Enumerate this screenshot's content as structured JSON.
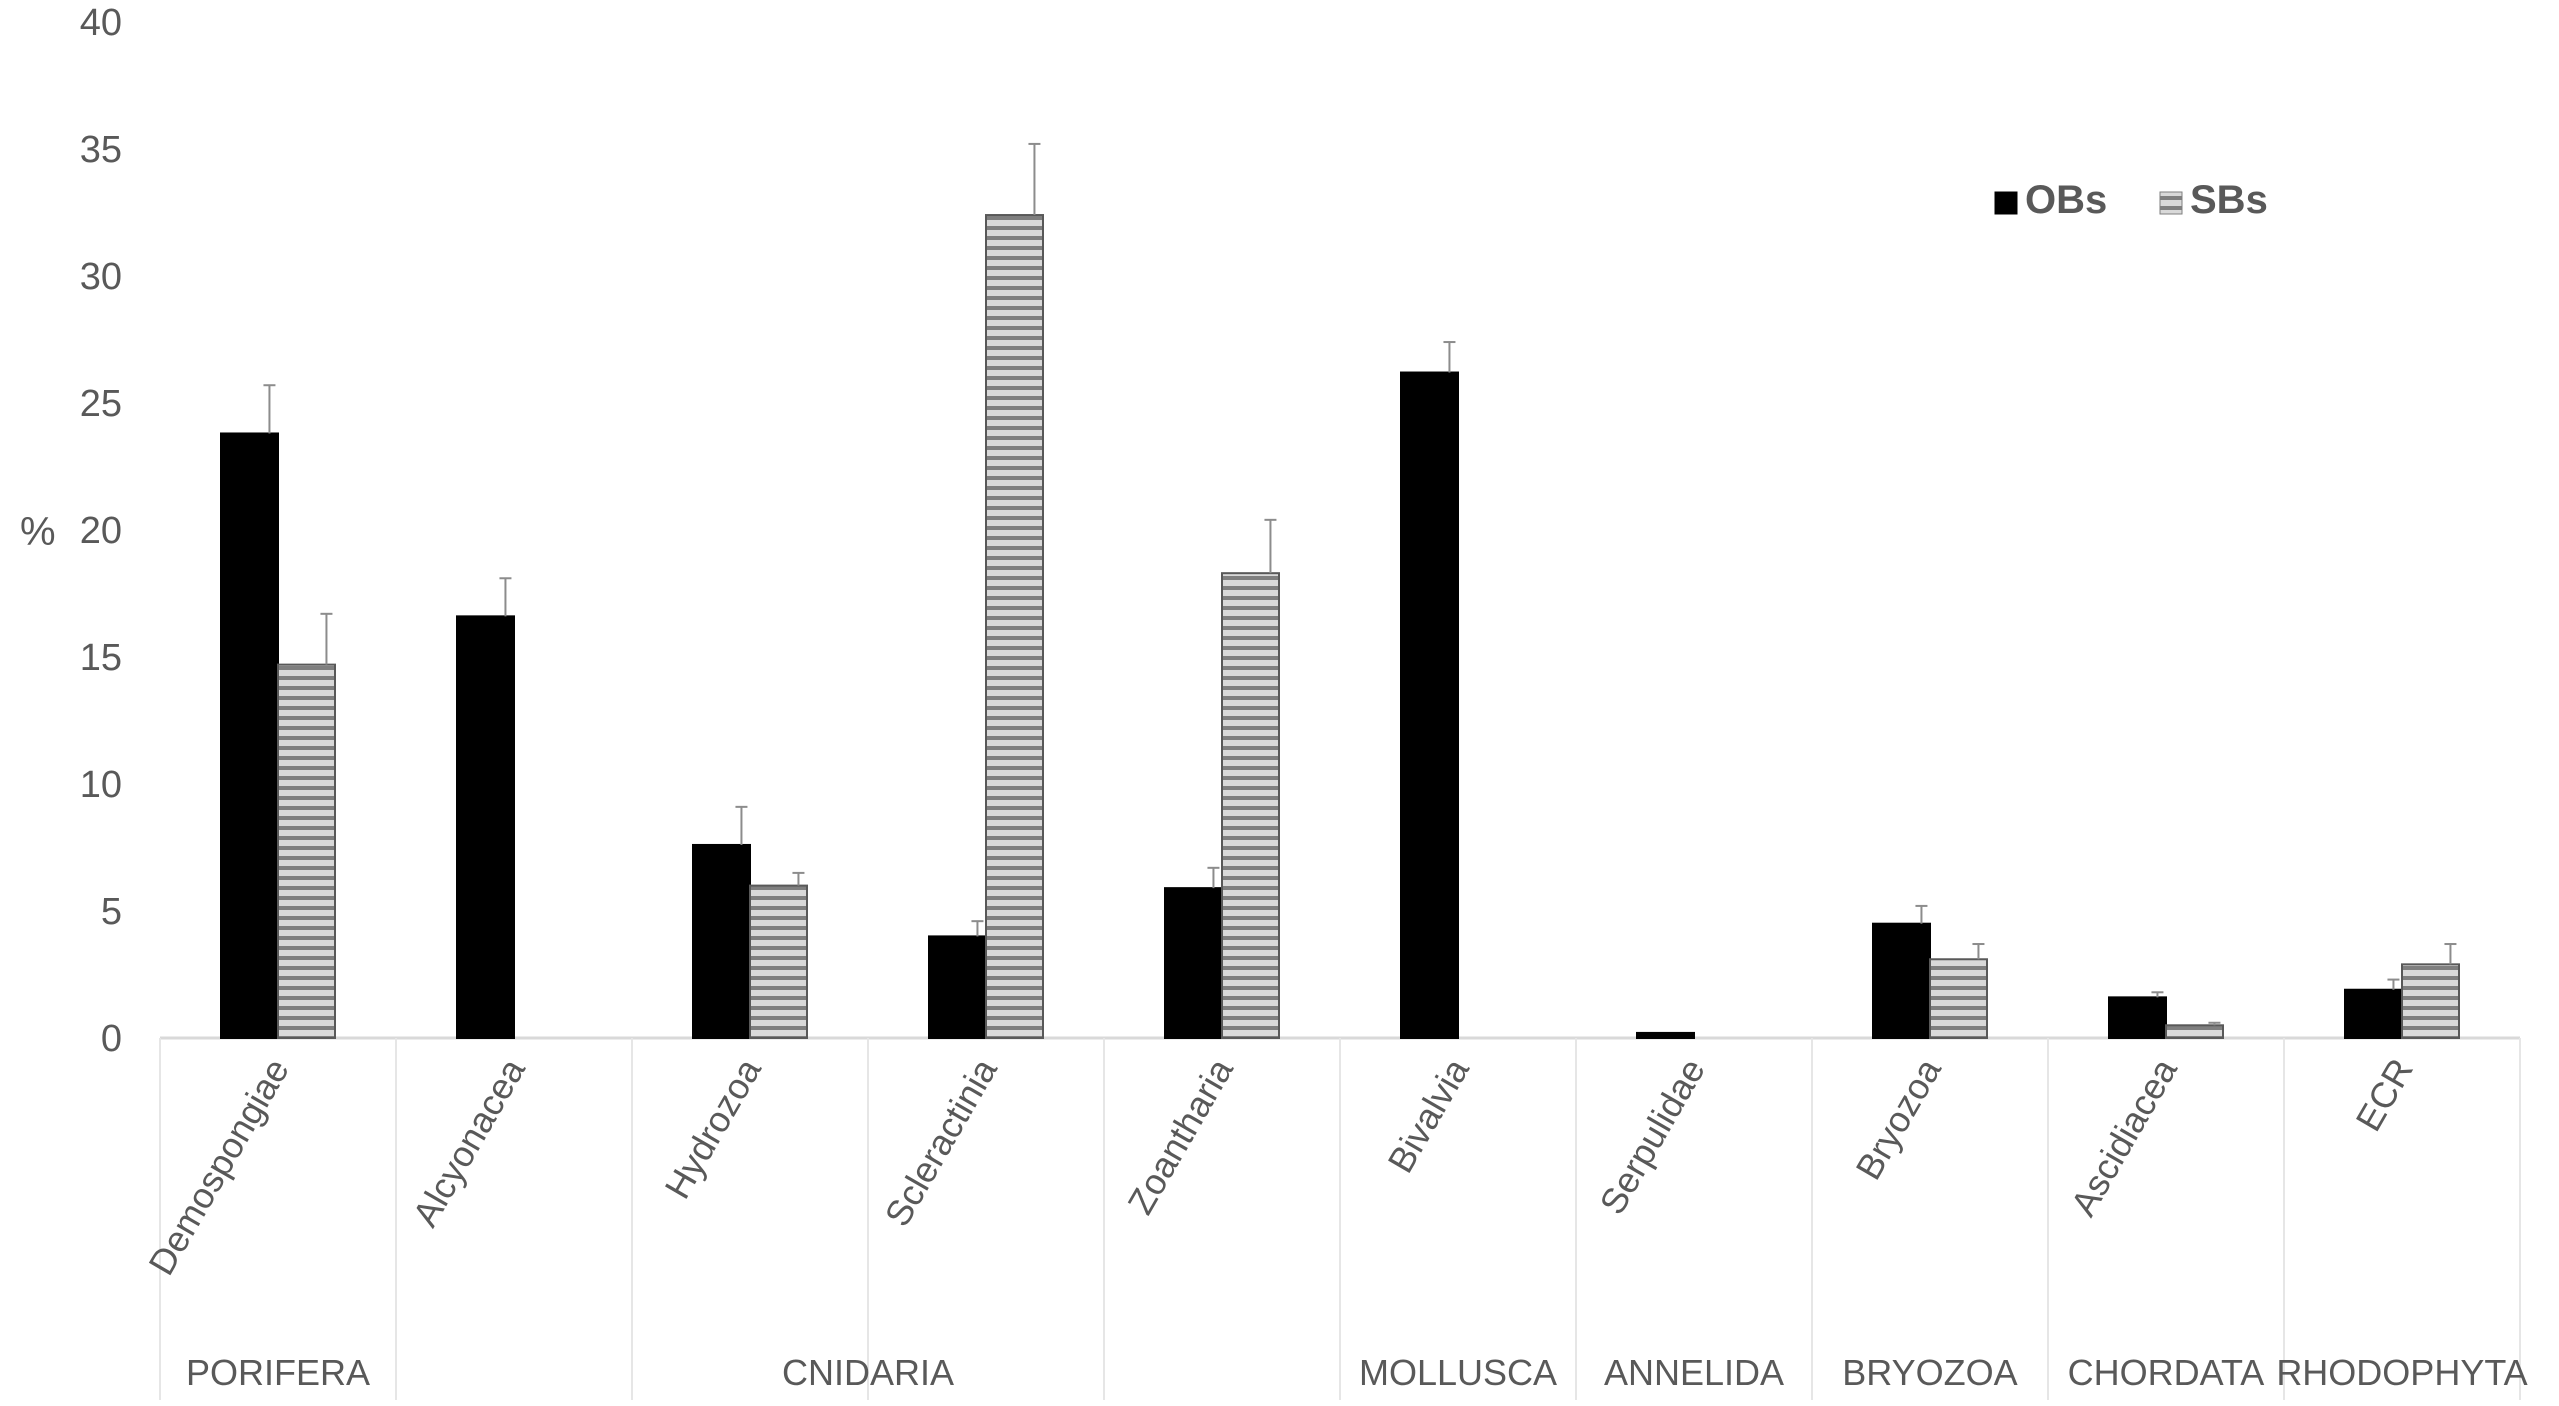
{
  "chart_data": {
    "type": "bar",
    "title": "",
    "xlabel": "",
    "ylabel": "%",
    "ylim": [
      0,
      40
    ],
    "yticks": [
      0,
      5,
      10,
      15,
      20,
      25,
      30,
      35,
      40
    ],
    "grid": false,
    "legend": {
      "position": "top-right"
    },
    "categories": [
      "Demospongiae",
      "Alcyonacea",
      "Hydrozoa",
      "Scleractinia",
      "Zoantharia",
      "Bivalvia",
      "Serpulidae",
      "Bryozoa",
      "Ascidiacea",
      "ECR"
    ],
    "groups": [
      {
        "label": "PORIFERA",
        "categories": [
          "Demospongiae"
        ]
      },
      {
        "label": "CNIDARIA",
        "categories": [
          "Alcyonacea",
          "Hydrozoa",
          "Scleractinia",
          "Zoantharia"
        ]
      },
      {
        "label": "MOLLUSCA",
        "categories": [
          "Bivalvia"
        ]
      },
      {
        "label": "ANNELIDA",
        "categories": [
          "Serpulidae"
        ]
      },
      {
        "label": "BRYOZOA",
        "categories": [
          "Bryozoa"
        ]
      },
      {
        "label": "CHORDATA",
        "categories": [
          "Ascidiacea"
        ]
      },
      {
        "label": "RHODOPHYTA",
        "categories": [
          "ECR"
        ]
      }
    ],
    "series": [
      {
        "name": "OBs",
        "color": "#000000",
        "pattern": "solid",
        "values": [
          23.8,
          16.6,
          7.6,
          4.0,
          5.9,
          26.2,
          0.2,
          4.5,
          1.6,
          1.9
        ],
        "errors": [
          1.9,
          1.5,
          1.5,
          0.6,
          0.8,
          1.2,
          0.0,
          0.7,
          0.2,
          0.4
        ]
      },
      {
        "name": "SBs",
        "color": "#bfbfbf",
        "pattern": "horizontal-stripes",
        "values": [
          14.7,
          0,
          6.0,
          32.4,
          18.3,
          0,
          0,
          3.1,
          0.5,
          2.9
        ],
        "errors": [
          2.0,
          0,
          0.5,
          2.8,
          2.1,
          0,
          0,
          0.6,
          0.1,
          0.8
        ]
      }
    ]
  }
}
